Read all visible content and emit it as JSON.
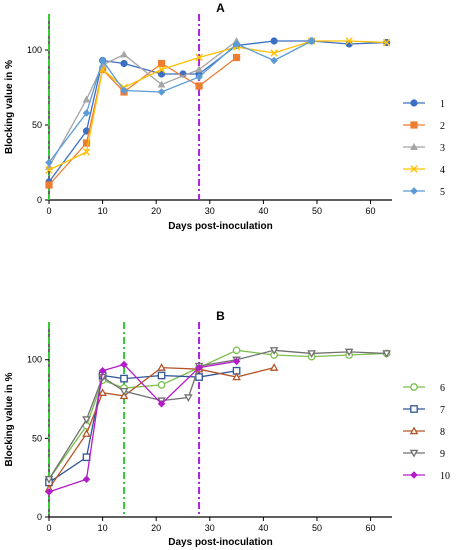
{
  "chart_data": [
    {
      "type": "line",
      "title": "A",
      "xlabel": "Days post-inoculation",
      "ylabel": "Blocking value in %",
      "xticks": [
        0,
        10,
        20,
        30,
        40,
        50,
        60
      ],
      "yticks": [
        0,
        50,
        100
      ],
      "xlim": [
        0,
        64
      ],
      "ylim": [
        0,
        124
      ],
      "grid": false,
      "legend_position": "right",
      "vlines": [
        {
          "x": 0,
          "color": "#33cc33",
          "style": "dash-dot"
        },
        {
          "x": 28,
          "color": "#aa22dd",
          "style": "dash-dot"
        }
      ],
      "series": [
        {
          "name": "1",
          "color": "#3a6fc4",
          "marker": "circle",
          "x": [
            0,
            7,
            10,
            14,
            21,
            25,
            28,
            35,
            42,
            49,
            56,
            63
          ],
          "y": [
            12,
            46,
            93,
            91,
            84,
            84,
            84,
            103,
            106,
            106,
            104,
            105
          ]
        },
        {
          "name": "2",
          "color": "#ed7d31",
          "marker": "square",
          "x": [
            0,
            7,
            10,
            14,
            21,
            28,
            35
          ],
          "y": [
            10,
            38,
            87,
            72,
            91,
            76,
            95
          ]
        },
        {
          "name": "3",
          "color": "#a5a5a5",
          "marker": "triangle",
          "x": [
            0,
            7,
            10,
            14,
            21,
            28,
            35
          ],
          "y": [
            22,
            67,
            90,
            97,
            77,
            87,
            106
          ]
        },
        {
          "name": "4",
          "color": "#ffc000",
          "marker": "x",
          "x": [
            0,
            7,
            10,
            14,
            21,
            28,
            35,
            42,
            49,
            56,
            63
          ],
          "y": [
            20,
            32,
            87,
            75,
            87,
            95,
            102,
            98,
            106,
            106,
            105
          ]
        },
        {
          "name": "5",
          "color": "#5b9bd5",
          "marker": "diamond",
          "x": [
            0,
            7,
            10,
            14,
            21,
            28,
            35,
            42,
            49
          ],
          "y": [
            25,
            58,
            93,
            73,
            72,
            82,
            104,
            93,
            106
          ]
        }
      ]
    },
    {
      "type": "line",
      "title": "B",
      "xlabel": "Days post-inoculation",
      "ylabel": "Blocking value in %",
      "xticks": [
        0,
        10,
        20,
        30,
        40,
        50,
        60
      ],
      "yticks": [
        0,
        50,
        100
      ],
      "xlim": [
        0,
        64
      ],
      "ylim": [
        0,
        124
      ],
      "grid": false,
      "legend_position": "right",
      "vlines": [
        {
          "x": 0,
          "color": "#33cc33",
          "style": "dash-dot"
        },
        {
          "x": 14,
          "color": "#33cc33",
          "style": "dash-dot"
        },
        {
          "x": 28,
          "color": "#aa22dd",
          "style": "dash-dot"
        }
      ],
      "series": [
        {
          "name": "6",
          "color": "#7bbf4e",
          "marker": "open-circle",
          "x": [
            0,
            7,
            10,
            14,
            21,
            28,
            35,
            42,
            49,
            56,
            63
          ],
          "y": [
            24,
            58,
            87,
            82,
            84,
            95,
            106,
            103,
            102,
            103,
            104
          ]
        },
        {
          "name": "7",
          "color": "#2f5597",
          "marker": "open-square",
          "x": [
            0,
            7,
            10,
            14,
            21,
            28,
            35
          ],
          "y": [
            22,
            38,
            90,
            88,
            90,
            89,
            93
          ]
        },
        {
          "name": "8",
          "color": "#b4552a",
          "marker": "open-triangle",
          "x": [
            0,
            7,
            10,
            14,
            21,
            28,
            35,
            42
          ],
          "y": [
            18,
            53,
            79,
            77,
            95,
            94,
            89,
            95
          ]
        },
        {
          "name": "9",
          "color": "#707070",
          "marker": "open-triangle-down",
          "x": [
            0,
            7,
            10,
            14,
            21,
            26,
            28,
            35,
            42,
            49,
            56,
            63
          ],
          "y": [
            24,
            62,
            89,
            80,
            74,
            76,
            96,
            100,
            106,
            104,
            105,
            104
          ]
        },
        {
          "name": "10",
          "color": "#b41cc9",
          "marker": "diamond",
          "x": [
            0,
            7,
            10,
            14,
            21,
            28,
            35
          ],
          "y": [
            16,
            24,
            93,
            97,
            72,
            95,
            99
          ]
        }
      ]
    }
  ]
}
